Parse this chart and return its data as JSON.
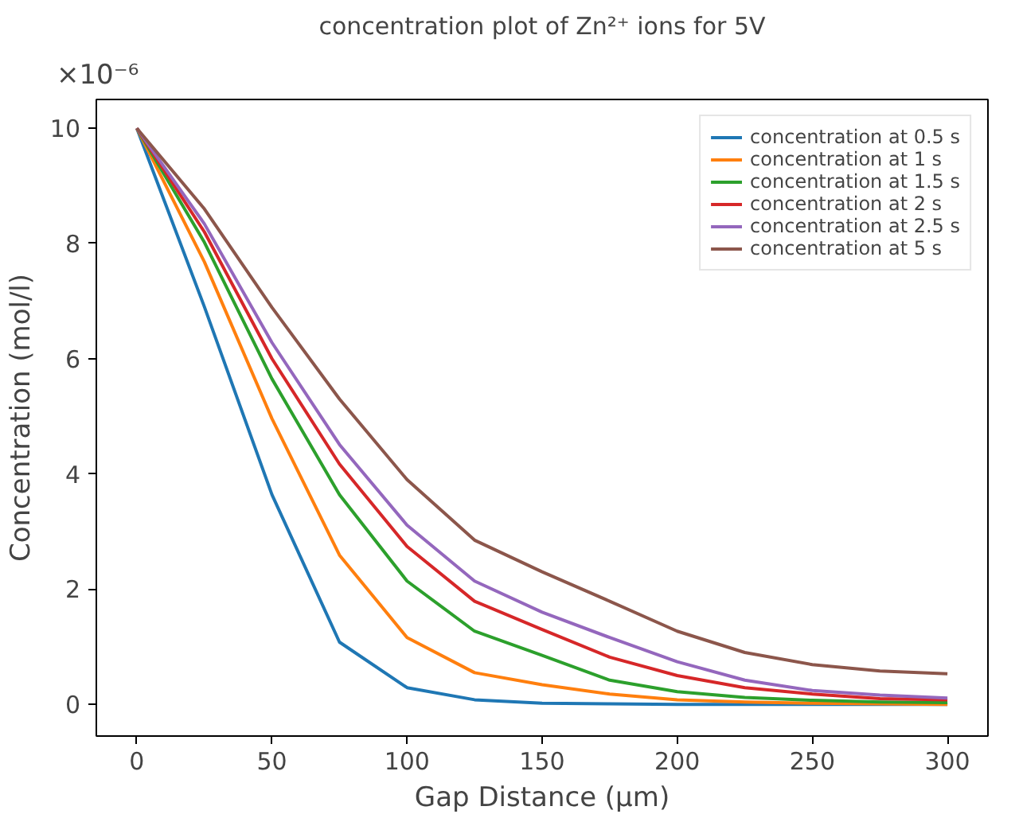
{
  "chart_data": {
    "type": "line",
    "title": "concentration plot of Zn²⁺ ions for 5V",
    "xlabel": "Gap Distance (µm)",
    "ylabel": "Concentration (mol/l)",
    "annotations": [
      "×10⁻⁶"
    ],
    "x": [
      0,
      25,
      50,
      75,
      100,
      125,
      150,
      175,
      200,
      225,
      250,
      275,
      300
    ],
    "series": [
      {
        "name": "concentration at 0.5 s",
        "color": "#1f77b4",
        "values": [
          10,
          6.9,
          3.64,
          1.08,
          0.29,
          0.08,
          0.02,
          0.01,
          0,
          0,
          0,
          0,
          0
        ]
      },
      {
        "name": "concentration at 1 s",
        "color": "#ff7f0e",
        "values": [
          10,
          7.68,
          4.96,
          2.59,
          1.16,
          0.55,
          0.34,
          0.18,
          0.08,
          0.04,
          0.02,
          0.01,
          0
        ]
      },
      {
        "name": "concentration at 1.5 s",
        "color": "#2ca02c",
        "values": [
          10,
          8.02,
          5.65,
          3.64,
          2.14,
          1.27,
          0.85,
          0.42,
          0.22,
          0.12,
          0.07,
          0.04,
          0.03
        ]
      },
      {
        "name": "concentration at 2 s",
        "color": "#d62728",
        "values": [
          10,
          8.2,
          6.0,
          4.17,
          2.74,
          1.79,
          1.3,
          0.82,
          0.5,
          0.29,
          0.18,
          0.1,
          0.08
        ]
      },
      {
        "name": "concentration at 2.5 s",
        "color": "#9467bd",
        "values": [
          10,
          8.34,
          6.28,
          4.51,
          3.11,
          2.14,
          1.6,
          1.16,
          0.74,
          0.42,
          0.24,
          0.16,
          0.11
        ]
      },
      {
        "name": "concentration at 5 s",
        "color": "#8c564b",
        "values": [
          10,
          8.6,
          6.89,
          5.3,
          3.9,
          2.85,
          2.3,
          1.79,
          1.27,
          0.9,
          0.69,
          0.58,
          0.53
        ]
      }
    ],
    "xlim": [
      -15,
      315
    ],
    "ylim": [
      -0.55,
      10.5
    ],
    "xticks": [
      0,
      50,
      100,
      150,
      200,
      250,
      300
    ],
    "yticks": [
      0,
      2,
      4,
      6,
      8,
      10
    ],
    "grid": false,
    "legend": "top right"
  }
}
